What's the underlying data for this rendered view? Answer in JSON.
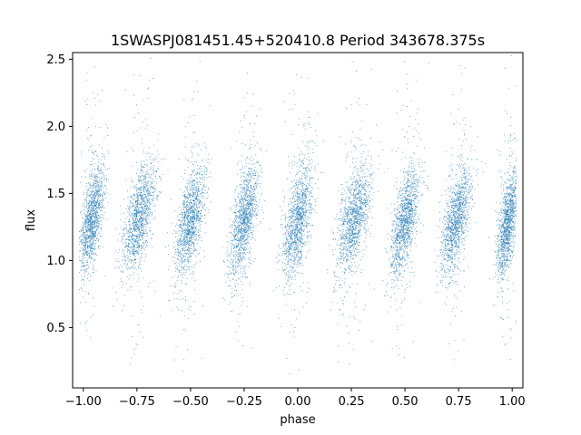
{
  "chart_data": {
    "type": "scatter",
    "title": "1SWASPJ081451.45+520410.8 Period 343678.375s",
    "xlabel": "phase",
    "ylabel": "flux",
    "xlim": [
      -1.05,
      1.05
    ],
    "ylim": [
      0.05,
      2.55
    ],
    "xticks": [
      -1.0,
      -0.75,
      -0.5,
      -0.25,
      0.0,
      0.25,
      0.5,
      0.75,
      1.0
    ],
    "xtick_labels": [
      "−1.00",
      "−0.75",
      "−0.50",
      "−0.25",
      "0.00",
      "0.25",
      "0.50",
      "0.75",
      "1.00"
    ],
    "yticks": [
      0.5,
      1.0,
      1.5,
      2.0,
      2.5
    ],
    "ytick_labels": [
      "0.5",
      "1.0",
      "1.5",
      "2.0",
      "2.5"
    ],
    "grid": false,
    "point_color": "#1f77b4",
    "clusters": [
      {
        "phase_center": -0.96,
        "phase_width": 0.06,
        "flux_center": 1.3,
        "flux_spread": 0.16
      },
      {
        "phase_center": -0.74,
        "phase_width": 0.08,
        "flux_center": 1.32,
        "flux_spread": 0.16
      },
      {
        "phase_center": -0.5,
        "phase_width": 0.07,
        "flux_center": 1.3,
        "flux_spread": 0.16
      },
      {
        "phase_center": -0.25,
        "phase_width": 0.07,
        "flux_center": 1.3,
        "flux_spread": 0.16
      },
      {
        "phase_center": 0.0,
        "phase_width": 0.07,
        "flux_center": 1.3,
        "flux_spread": 0.18
      },
      {
        "phase_center": 0.26,
        "phase_width": 0.08,
        "flux_center": 1.3,
        "flux_spread": 0.16
      },
      {
        "phase_center": 0.5,
        "phase_width": 0.07,
        "flux_center": 1.3,
        "flux_spread": 0.16
      },
      {
        "phase_center": 0.74,
        "phase_width": 0.07,
        "flux_center": 1.3,
        "flux_spread": 0.16
      },
      {
        "phase_center": 0.98,
        "phase_width": 0.05,
        "flux_center": 1.28,
        "flux_spread": 0.16
      }
    ]
  }
}
